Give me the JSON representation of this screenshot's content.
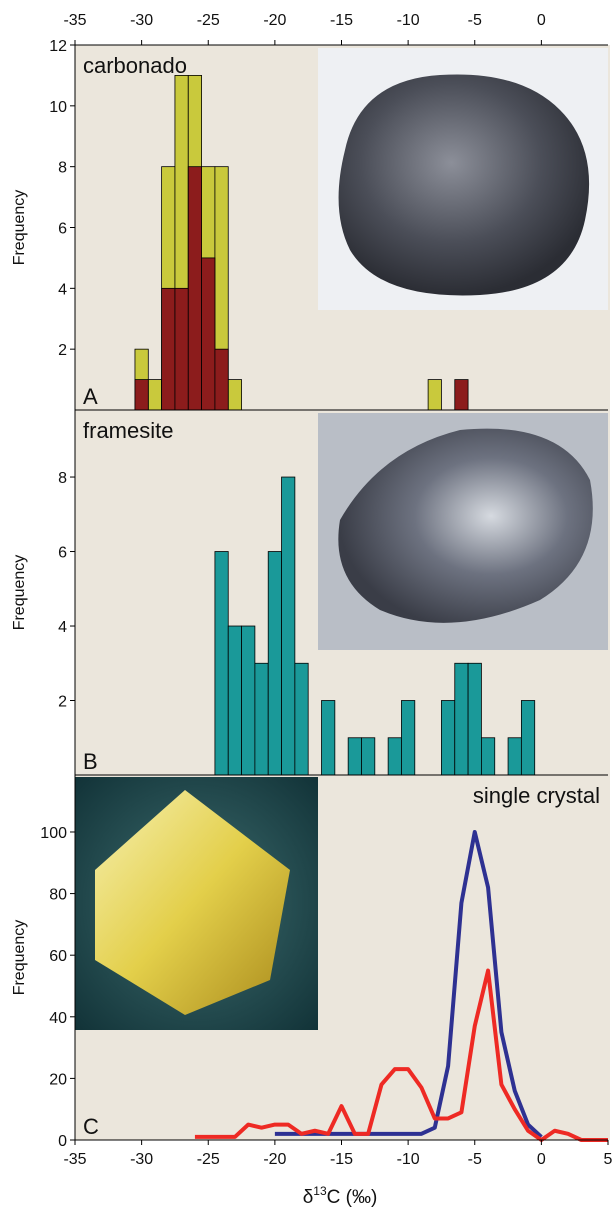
{
  "chart_data": [
    {
      "type": "histogram",
      "title": "carbonado",
      "panel_label": "A",
      "y_label": "Frequency",
      "xlim": [
        -35,
        5
      ],
      "xticks": [
        -35,
        -30,
        -25,
        -20,
        -15,
        -10,
        -5,
        0
      ],
      "x_axis_position": "top",
      "ylim": [
        0,
        12
      ],
      "yticks": [
        2,
        4,
        6,
        8,
        10,
        12
      ],
      "bins": [
        -30.5,
        -29.5,
        -28.5,
        -27.5,
        -26.5,
        -25.5,
        -24.5,
        -23.5,
        -22.5,
        -21.5,
        -20.5,
        -19.5,
        -18.5,
        -17.5,
        -16.5,
        -15.5,
        -14.5,
        -13.5,
        -12.5,
        -11.5,
        -10.5,
        -9.5,
        -8.5,
        -7.5,
        -6.5,
        -5.5
      ],
      "series": [
        {
          "color": "#c9c93c",
          "values": [
            2,
            1,
            8,
            11,
            11,
            8,
            8,
            1,
            0,
            0,
            0,
            0,
            0,
            0,
            0,
            0,
            0,
            0,
            0,
            0,
            0,
            0,
            1,
            0,
            0
          ]
        },
        {
          "color": "#8c1c1c",
          "values": [
            1,
            0,
            4,
            4,
            8,
            5,
            2,
            0,
            0,
            0,
            0,
            0,
            0,
            0,
            0,
            0,
            0,
            0,
            0,
            0,
            0,
            0,
            0,
            0,
            1
          ]
        }
      ]
    },
    {
      "type": "histogram",
      "title": "framesite",
      "panel_label": "B",
      "y_label": "Frequency",
      "xlim": [
        -35,
        5
      ],
      "ylim": [
        0,
        9.8
      ],
      "yticks": [
        2,
        4,
        6,
        8
      ],
      "bins": [
        -24.5,
        -23.5,
        -22.5,
        -21.5,
        -20.5,
        -19.5,
        -18.5,
        -17.5,
        -16.5,
        -15.5,
        -14.5,
        -13.5,
        -12.5,
        -11.5,
        -10.5,
        -9.5,
        -8.5,
        -7.5,
        -6.5,
        -5.5,
        -4.5,
        -3.5,
        -2.5,
        -1.5,
        -0.5
      ],
      "series": [
        {
          "color": "#1a9999",
          "values": [
            6,
            4,
            4,
            3,
            6,
            8,
            3,
            0,
            2,
            0,
            1,
            1,
            0,
            1,
            2,
            0,
            0,
            2,
            3,
            3,
            1,
            0,
            1,
            2
          ]
        }
      ]
    },
    {
      "type": "line",
      "title": "single crystal",
      "panel_label": "C",
      "y_label": "Frequency",
      "x_label": [
        "δ",
        "13",
        "C (‰)"
      ],
      "xlim": [
        -35,
        5
      ],
      "xticks": [
        -35,
        -30,
        -25,
        -20,
        -15,
        -10,
        -5,
        0,
        5
      ],
      "x_axis_position": "bottom",
      "ylim": [
        0,
        118.5
      ],
      "yticks": [
        0,
        20,
        40,
        60,
        80,
        100
      ],
      "x": [
        -26,
        -25,
        -24,
        -23,
        -22,
        -21,
        -20,
        -19,
        -18,
        -17,
        -16,
        -15,
        -14,
        -13,
        -12,
        -11,
        -10,
        -9,
        -8,
        -7,
        -6,
        -5,
        -4,
        -3,
        -2,
        -1,
        0,
        1,
        2,
        3,
        4,
        5
      ],
      "series": [
        {
          "color": "#2e3192",
          "values": [
            null,
            null,
            null,
            null,
            null,
            null,
            2,
            2,
            2,
            2,
            2,
            2,
            2,
            2,
            2,
            2,
            2,
            2,
            4,
            24,
            77,
            100,
            82,
            35,
            16,
            5,
            1,
            null,
            null,
            null,
            null,
            null
          ]
        },
        {
          "color": "#ee2a24",
          "values": [
            1,
            1,
            1,
            1,
            5,
            4,
            5,
            5,
            2,
            3,
            2,
            11,
            2,
            2,
            18,
            23,
            23,
            17,
            7,
            7,
            9,
            37,
            55,
            18,
            10,
            3,
            0,
            3,
            2,
            0,
            0,
            0
          ]
        }
      ]
    }
  ]
}
